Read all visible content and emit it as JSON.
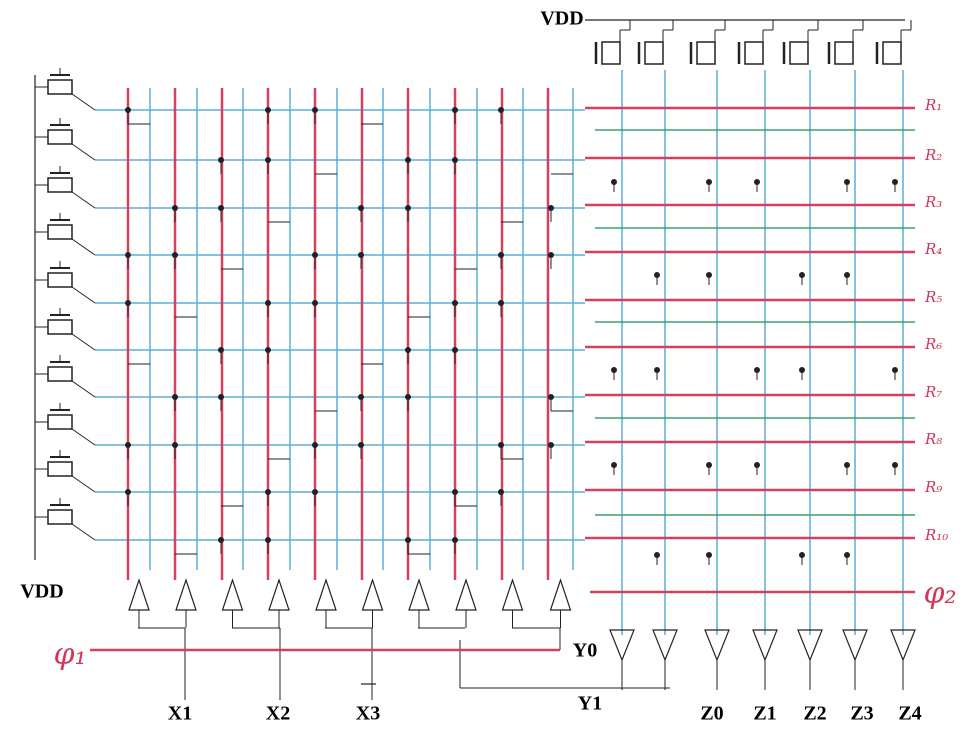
{
  "labels": {
    "vdd_top": "VDD",
    "vdd_left": "VDD",
    "phi1": "φ₁",
    "phi2": "φ₂"
  },
  "rows": [
    "R₁",
    "R₂",
    "R₃",
    "R₄",
    "R₅",
    "R₆",
    "R₇",
    "R₈",
    "R₉",
    "R₁₀"
  ],
  "inputs": [
    "X1",
    "X2",
    "X3"
  ],
  "y_outputs": [
    "Y0",
    "Y1"
  ],
  "z_outputs": [
    "Z0",
    "Z1",
    "Z2",
    "Z3",
    "Z4"
  ]
}
